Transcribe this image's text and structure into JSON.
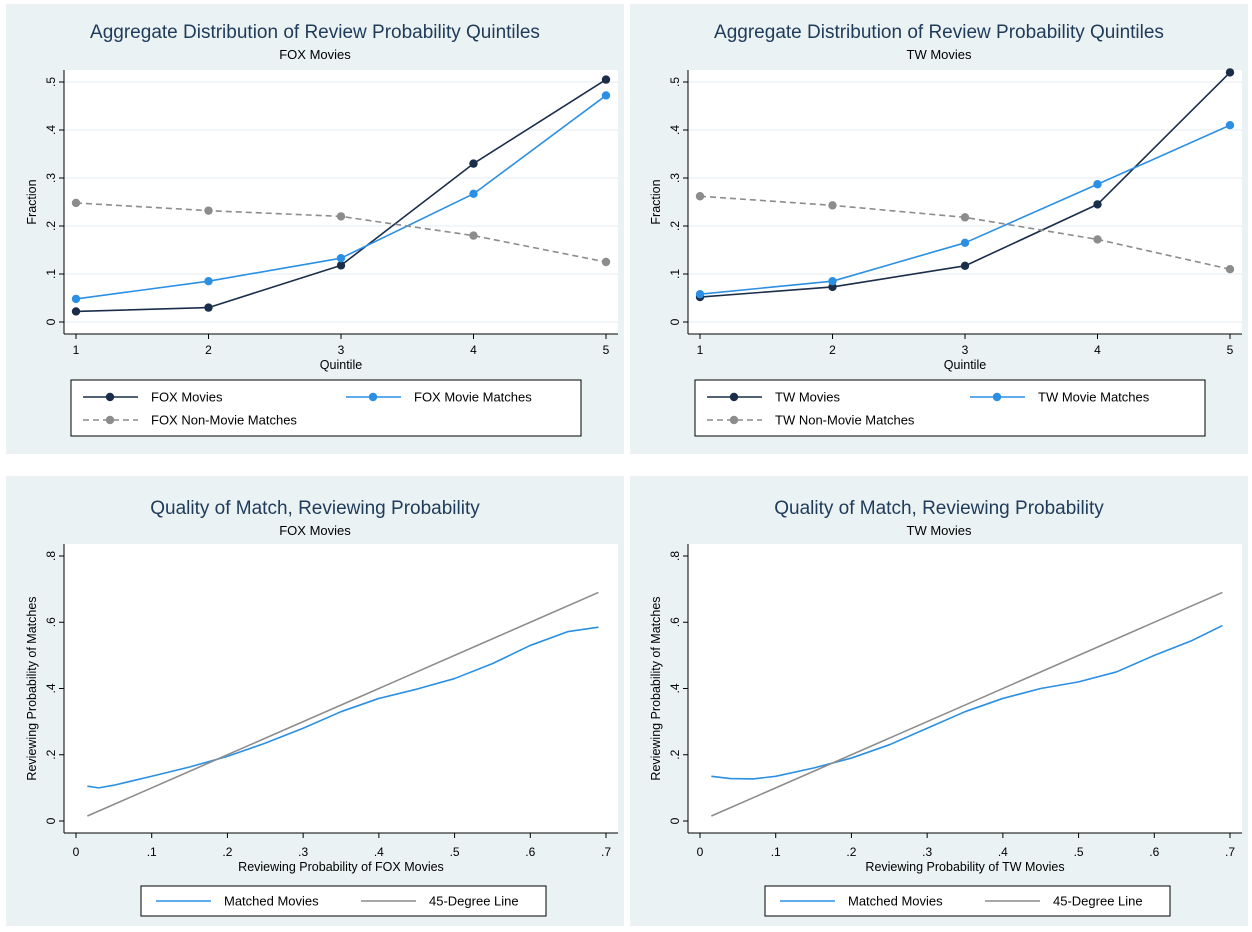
{
  "chart_data": [
    {
      "type": "line",
      "title": "Aggregate Distribution of Review Probability Quintiles",
      "subtitle": "FOX Movies",
      "xlabel": "Quintile",
      "ylabel": "Fraction",
      "xlim": [
        1,
        5
      ],
      "ylim": [
        0,
        0.5
      ],
      "xticks": [
        "1",
        "2",
        "3",
        "4",
        "5"
      ],
      "yticks": [
        "0",
        ".1",
        ".2",
        ".3",
        ".4",
        ".5"
      ],
      "grid": true,
      "x": [
        1,
        2,
        3,
        4,
        5
      ],
      "series": [
        {
          "name": "FOX Movies",
          "values": [
            0.022,
            0.03,
            0.118,
            0.33,
            0.505
          ],
          "color": "#1a2e4a",
          "dash": false
        },
        {
          "name": "FOX Movie Matches",
          "values": [
            0.048,
            0.085,
            0.133,
            0.267,
            0.472
          ],
          "color": "#2b8fe3",
          "dash": false
        },
        {
          "name": "FOX Non-Movie Matches",
          "values": [
            0.248,
            0.232,
            0.22,
            0.18,
            0.125
          ],
          "color": "#8c8c8c",
          "dash": true
        }
      ]
    },
    {
      "type": "line",
      "title": "Aggregate Distribution of Review Probability Quintiles",
      "subtitle": "TW Movies",
      "xlabel": "Quintile",
      "ylabel": "Fraction",
      "xlim": [
        1,
        5
      ],
      "ylim": [
        0,
        0.5
      ],
      "xticks": [
        "1",
        "2",
        "3",
        "4",
        "5"
      ],
      "yticks": [
        "0",
        ".1",
        ".2",
        ".3",
        ".4",
        ".5"
      ],
      "grid": true,
      "x": [
        1,
        2,
        3,
        4,
        5
      ],
      "series": [
        {
          "name": "TW Movies",
          "values": [
            0.052,
            0.073,
            0.117,
            0.245,
            0.52
          ],
          "color": "#1a2e4a",
          "dash": false
        },
        {
          "name": "TW Movie Matches",
          "values": [
            0.058,
            0.085,
            0.165,
            0.287,
            0.41
          ],
          "color": "#2b8fe3",
          "dash": false
        },
        {
          "name": "TW Non-Movie Matches",
          "values": [
            0.262,
            0.243,
            0.218,
            0.172,
            0.11
          ],
          "color": "#8c8c8c",
          "dash": true
        }
      ]
    },
    {
      "type": "line",
      "title": "Quality of Match, Reviewing Probability",
      "subtitle": "FOX Movies",
      "xlabel": "Reviewing Probability of FOX Movies",
      "ylabel": "Reviewing Probability of Matches",
      "xlim": [
        0,
        0.7
      ],
      "ylim": [
        0,
        0.8
      ],
      "xticks": [
        "0",
        ".1",
        ".2",
        ".3",
        ".4",
        ".5",
        ".6",
        ".7"
      ],
      "yticks": [
        "0",
        ".2",
        ".4",
        ".6",
        ".8"
      ],
      "grid": false,
      "series": [
        {
          "name": "Matched Movies",
          "color": "#2b8fe3",
          "dash": false,
          "x": [
            0.015,
            0.03,
            0.05,
            0.1,
            0.15,
            0.2,
            0.25,
            0.3,
            0.35,
            0.4,
            0.45,
            0.5,
            0.55,
            0.6,
            0.65,
            0.69
          ],
          "y": [
            0.105,
            0.1,
            0.108,
            0.135,
            0.163,
            0.195,
            0.235,
            0.28,
            0.33,
            0.37,
            0.398,
            0.43,
            0.475,
            0.53,
            0.572,
            0.585
          ]
        },
        {
          "name": "45-Degree Line",
          "color": "#8c8c8c",
          "dash": false,
          "x": [
            0.015,
            0.69
          ],
          "y": [
            0.015,
            0.69
          ]
        }
      ]
    },
    {
      "type": "line",
      "title": "Quality of Match, Reviewing Probability",
      "subtitle": "TW Movies",
      "xlabel": "Reviewing Probability of TW Movies",
      "ylabel": "Reviewing Probability of Matches",
      "xlim": [
        0,
        0.7
      ],
      "ylim": [
        0,
        0.8
      ],
      "xticks": [
        "0",
        ".1",
        ".2",
        ".3",
        ".4",
        ".5",
        ".6",
        ".7"
      ],
      "yticks": [
        "0",
        ".2",
        ".4",
        ".6",
        ".8"
      ],
      "grid": false,
      "series": [
        {
          "name": "Matched Movies",
          "color": "#2b8fe3",
          "dash": false,
          "x": [
            0.015,
            0.04,
            0.07,
            0.1,
            0.15,
            0.2,
            0.25,
            0.3,
            0.35,
            0.4,
            0.45,
            0.5,
            0.55,
            0.6,
            0.65,
            0.69
          ],
          "y": [
            0.135,
            0.128,
            0.127,
            0.135,
            0.16,
            0.19,
            0.23,
            0.28,
            0.33,
            0.37,
            0.4,
            0.42,
            0.45,
            0.5,
            0.545,
            0.59
          ]
        },
        {
          "name": "45-Degree Line",
          "color": "#8c8c8c",
          "dash": false,
          "x": [
            0.015,
            0.69
          ],
          "y": [
            0.015,
            0.69
          ]
        }
      ]
    }
  ]
}
